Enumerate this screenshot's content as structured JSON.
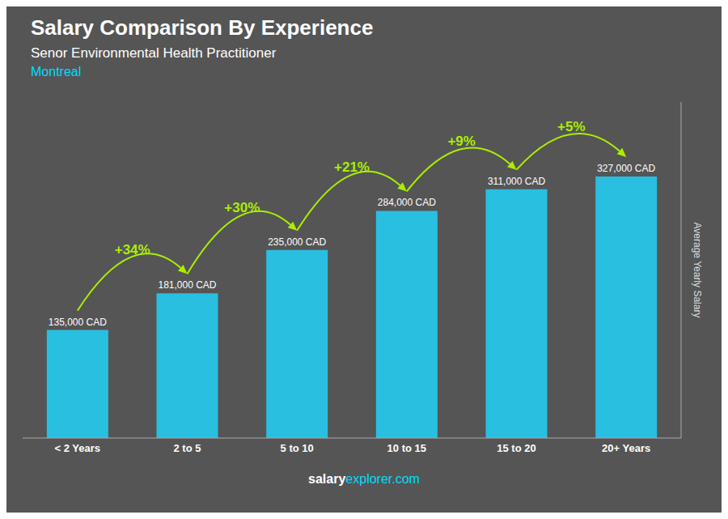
{
  "chart_data": {
    "type": "bar",
    "title": "Salary Comparison By Experience",
    "subtitle": "Senor Environmental Health Practitioner",
    "ylabel": "Average Yearly Salary",
    "categories": [
      "< 2 Years",
      "2 to 5",
      "5 to 10",
      "10 to 15",
      "15 to 20",
      "20+ Years"
    ],
    "values": [
      135000,
      181000,
      235000,
      284000,
      311000,
      327000
    ],
    "value_labels": [
      "135,000 CAD",
      "181,000 CAD",
      "235,000 CAD",
      "284,000 CAD",
      "311,000 CAD",
      "327,000 CAD"
    ],
    "data_labels": true,
    "color": "#29bfe0",
    "ylim": [
      0,
      420000
    ],
    "tick_labels": "x",
    "pct_changes": {
      "labels": [
        "+34%",
        "+30%",
        "+21%",
        "+9%",
        "+5%"
      ],
      "color": "#aaee00"
    },
    "annotations": [
      {
        "text": "Montreal",
        "color": "#00ddff"
      },
      {
        "text": "salary",
        "color": "#ffffff"
      },
      {
        "text": "explorer.com",
        "color": "#00ddff"
      }
    ]
  }
}
